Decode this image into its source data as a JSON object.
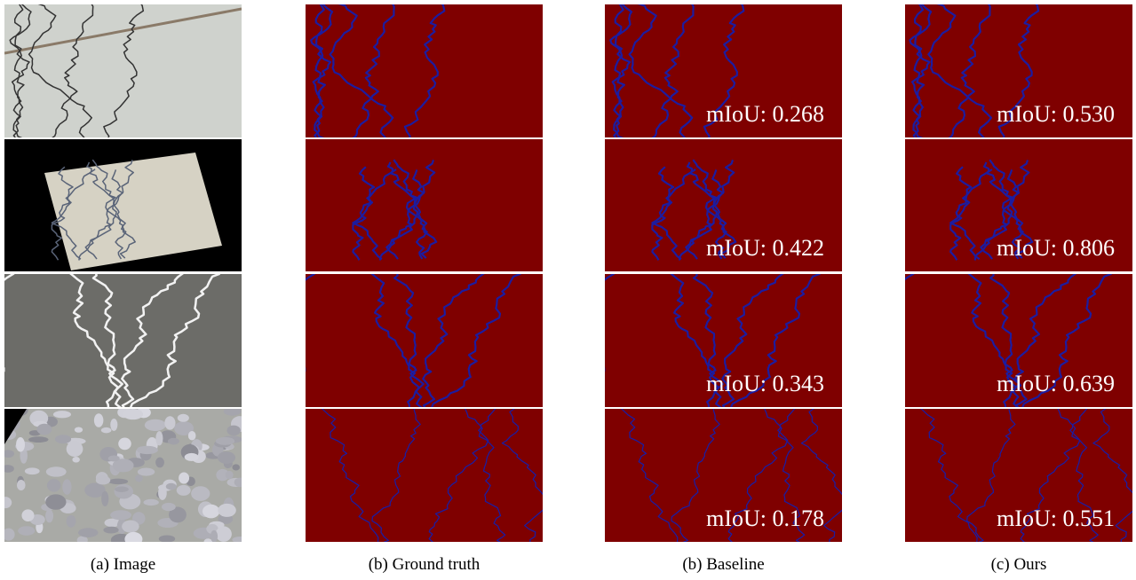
{
  "figure": {
    "captions": [
      "(a) Image",
      "(b) Ground truth",
      "(b) Baseline",
      "(c) Ours"
    ],
    "baseline_miou": [
      "mIoU: 0.268",
      "mIoU: 0.422",
      "mIoU: 0.343",
      "mIoU: 0.178"
    ],
    "ours_miou": [
      "mIoU: 0.530",
      "mIoU: 0.806",
      "mIoU: 0.639",
      "mIoU: 0.551"
    ]
  }
}
